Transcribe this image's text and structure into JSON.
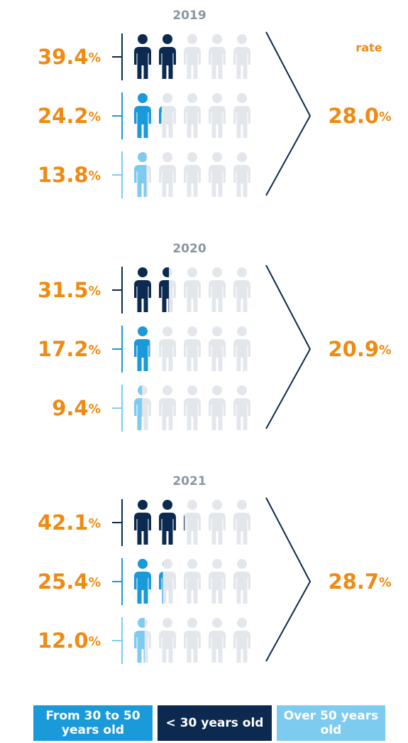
{
  "rate_title": "rate",
  "chart_data": [
    {
      "type": "pictograph",
      "title": "2019",
      "xlim": [
        0,
        100
      ],
      "series": [
        {
          "name": "< 30 years old",
          "color": "#0c2a4f",
          "values": [
            39.4
          ],
          "value_labels": [
            "39.4%"
          ]
        },
        {
          "name": "From 30 to 50 years old",
          "color": "#1a9ad9",
          "values": [
            24.2
          ],
          "value_labels": [
            "24.2%"
          ]
        },
        {
          "name": "Over 50 years old",
          "color": "#7ecbf0",
          "values": [
            13.8
          ],
          "value_labels": [
            "13.8%"
          ]
        }
      ],
      "rate": {
        "value": 28.0,
        "label": "28.0%"
      }
    },
    {
      "type": "pictograph",
      "title": "2020",
      "xlim": [
        0,
        100
      ],
      "series": [
        {
          "name": "< 30 years old",
          "color": "#0c2a4f",
          "values": [
            31.5
          ],
          "value_labels": [
            "31.5%"
          ]
        },
        {
          "name": "From 30 to 50 years old",
          "color": "#1a9ad9",
          "values": [
            17.2
          ],
          "value_labels": [
            "17.2%"
          ]
        },
        {
          "name": "Over 50 years old",
          "color": "#7ecbf0",
          "values": [
            9.4
          ],
          "value_labels": [
            "9.4%"
          ]
        }
      ],
      "rate": {
        "value": 20.9,
        "label": "20.9%"
      }
    },
    {
      "type": "pictograph",
      "title": "2021",
      "xlim": [
        0,
        100
      ],
      "series": [
        {
          "name": "< 30 years old",
          "color": "#0c2a4f",
          "values": [
            42.1
          ],
          "value_labels": [
            "42.1%"
          ]
        },
        {
          "name": "From 30 to 50 years old",
          "color": "#1a9ad9",
          "values": [
            25.4
          ],
          "value_labels": [
            "25.4%"
          ]
        },
        {
          "name": "Over 50 years old",
          "color": "#7ecbf0",
          "values": [
            12.0
          ],
          "value_labels": [
            "12.0%"
          ]
        }
      ],
      "rate": {
        "value": 28.7,
        "label": "28.7%"
      }
    }
  ]
}
